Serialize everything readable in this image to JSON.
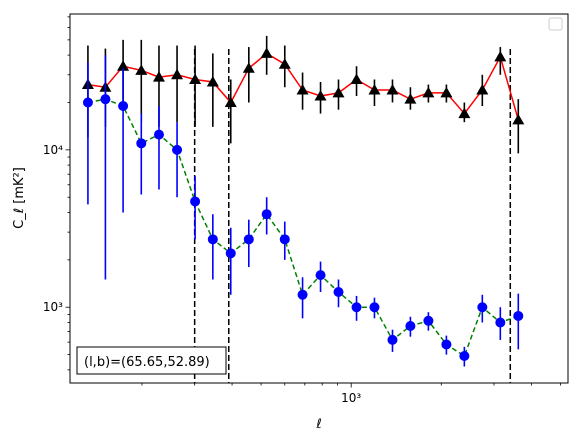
{
  "chart_data": {
    "type": "scatter",
    "title": "",
    "xlabel": "ℓ",
    "ylabel": "C_ℓ  [mK²]",
    "xscale": "log",
    "yscale": "log",
    "xlim": [
      115,
      5300
    ],
    "ylim": [
      330,
      73000
    ],
    "x_tick_labels": [
      {
        "value": 1000,
        "label": "10³"
      }
    ],
    "y_tick_labels": [
      {
        "value": 1000,
        "label": "10³"
      },
      {
        "value": 10000,
        "label": "10⁴"
      }
    ],
    "vertical_lines": [
      300,
      390,
      3400
    ],
    "annotation": "(l,b)=(65.65,52.89)",
    "legend": {
      "placement": "top-right",
      "entries": []
    },
    "series": [
      {
        "color": "#000000",
        "line_color": "#ff0000",
        "line_style": "solid",
        "marker": "triangle",
        "points": [
          {
            "x": 132,
            "y": 26000,
            "lo": 12000,
            "hi": 46000
          },
          {
            "x": 151,
            "y": 25000,
            "lo": 14000,
            "hi": 44000
          },
          {
            "x": 173,
            "y": 34000,
            "lo": 18000,
            "hi": 50000
          },
          {
            "x": 199,
            "y": 32000,
            "lo": 15000,
            "hi": 50000
          },
          {
            "x": 228,
            "y": 29000,
            "lo": 14000,
            "hi": 46000
          },
          {
            "x": 262,
            "y": 30000,
            "lo": 15000,
            "hi": 46000
          },
          {
            "x": 301,
            "y": 28000,
            "lo": 14000,
            "hi": 46000
          },
          {
            "x": 345,
            "y": 27000,
            "lo": 14000,
            "hi": 41000
          },
          {
            "x": 396,
            "y": 20000,
            "lo": 11000,
            "hi": 28000
          },
          {
            "x": 455,
            "y": 33000,
            "lo": 20000,
            "hi": 45000
          },
          {
            "x": 522,
            "y": 41000,
            "lo": 30000,
            "hi": 53000
          },
          {
            "x": 600,
            "y": 35000,
            "lo": 25000,
            "hi": 46000
          },
          {
            "x": 688,
            "y": 24000,
            "lo": 18000,
            "hi": 31000
          },
          {
            "x": 790,
            "y": 22000,
            "lo": 17000,
            "hi": 27000
          },
          {
            "x": 907,
            "y": 23000,
            "lo": 18000,
            "hi": 28000
          },
          {
            "x": 1042,
            "y": 28000,
            "lo": 22000,
            "hi": 34000
          },
          {
            "x": 1196,
            "y": 24000,
            "lo": 19000,
            "hi": 28000
          },
          {
            "x": 1374,
            "y": 24000,
            "lo": 20000,
            "hi": 28000
          },
          {
            "x": 1577,
            "y": 21000,
            "lo": 18000,
            "hi": 25000
          },
          {
            "x": 1811,
            "y": 23000,
            "lo": 20000,
            "hi": 26000
          },
          {
            "x": 2080,
            "y": 23000,
            "lo": 20000,
            "hi": 26000
          },
          {
            "x": 2388,
            "y": 17000,
            "lo": 15000,
            "hi": 20000
          },
          {
            "x": 2742,
            "y": 24000,
            "lo": 19000,
            "hi": 30000
          },
          {
            "x": 3149,
            "y": 39000,
            "lo": 30000,
            "hi": 45000
          },
          {
            "x": 3616,
            "y": 15500,
            "lo": 9500,
            "hi": 21000
          }
        ]
      },
      {
        "color": "#0000ff",
        "line_color": "#008000",
        "line_style": "dashed",
        "marker": "circle",
        "points": [
          {
            "x": 132,
            "y": 20000,
            "lo": 4500,
            "hi": 36000
          },
          {
            "x": 151,
            "y": 21000,
            "lo": 1500,
            "hi": 40000
          },
          {
            "x": 173,
            "y": 19000,
            "lo": 4000,
            "hi": 33000
          },
          {
            "x": 199,
            "y": 11000,
            "lo": 5200,
            "hi": 17000
          },
          {
            "x": 228,
            "y": 12500,
            "lo": 5600,
            "hi": 19000
          },
          {
            "x": 262,
            "y": 10000,
            "lo": 5000,
            "hi": 15000
          },
          {
            "x": 301,
            "y": 4700,
            "lo": 2700,
            "hi": 6800
          },
          {
            "x": 345,
            "y": 2700,
            "lo": 1500,
            "hi": 3900
          },
          {
            "x": 396,
            "y": 2200,
            "lo": 1200,
            "hi": 3200
          },
          {
            "x": 455,
            "y": 2700,
            "lo": 1800,
            "hi": 3600
          },
          {
            "x": 522,
            "y": 3900,
            "lo": 2900,
            "hi": 5000
          },
          {
            "x": 600,
            "y": 2700,
            "lo": 2000,
            "hi": 3500
          },
          {
            "x": 688,
            "y": 1200,
            "lo": 850,
            "hi": 1550
          },
          {
            "x": 790,
            "y": 1600,
            "lo": 1250,
            "hi": 1950
          },
          {
            "x": 907,
            "y": 1250,
            "lo": 1000,
            "hi": 1500
          },
          {
            "x": 1042,
            "y": 1000,
            "lo": 820,
            "hi": 1180
          },
          {
            "x": 1196,
            "y": 1000,
            "lo": 850,
            "hi": 1150
          },
          {
            "x": 1374,
            "y": 620,
            "lo": 520,
            "hi": 720
          },
          {
            "x": 1577,
            "y": 760,
            "lo": 650,
            "hi": 870
          },
          {
            "x": 1811,
            "y": 820,
            "lo": 710,
            "hi": 930
          },
          {
            "x": 2080,
            "y": 580,
            "lo": 500,
            "hi": 660
          },
          {
            "x": 2388,
            "y": 490,
            "lo": 420,
            "hi": 560
          },
          {
            "x": 2742,
            "y": 1000,
            "lo": 800,
            "hi": 1200
          },
          {
            "x": 3149,
            "y": 800,
            "lo": 620,
            "hi": 1000
          },
          {
            "x": 3616,
            "y": 880,
            "lo": 540,
            "hi": 1220
          }
        ]
      }
    ]
  }
}
